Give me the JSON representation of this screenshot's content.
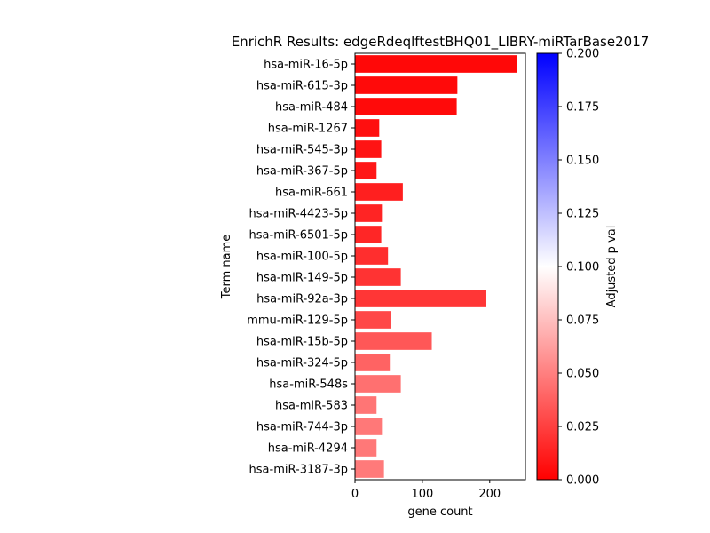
{
  "chart_data": {
    "type": "bar",
    "orientation": "horizontal",
    "title": "EnrichR Results: edgeRdeqlftestBHQ01_LIBRY-miRTarBase2017",
    "xlabel": "gene count",
    "ylabel": "Term name",
    "xlim": [
      0,
      253
    ],
    "xticks": [
      0,
      100,
      200
    ],
    "categories": [
      "hsa-miR-16-5p",
      "hsa-miR-615-3p",
      "hsa-miR-484",
      "hsa-miR-1267",
      "hsa-miR-545-3p",
      "hsa-miR-367-5p",
      "hsa-miR-661",
      "hsa-miR-4423-5p",
      "hsa-miR-6501-5p",
      "hsa-miR-100-5p",
      "hsa-miR-149-5p",
      "hsa-miR-92a-3p",
      "mmu-miR-129-5p",
      "hsa-miR-15b-5p",
      "hsa-miR-324-5p",
      "hsa-miR-548s",
      "hsa-miR-583",
      "hsa-miR-744-3p",
      "hsa-miR-4294",
      "hsa-miR-3187-3p"
    ],
    "values": [
      240,
      152,
      151,
      36,
      39,
      32,
      71,
      40,
      39,
      49,
      68,
      195,
      54,
      114,
      53,
      68,
      32,
      40,
      32,
      43
    ],
    "adjusted_p": [
      0.003,
      0.004,
      0.004,
      0.006,
      0.008,
      0.009,
      0.012,
      0.014,
      0.015,
      0.018,
      0.02,
      0.021,
      0.028,
      0.034,
      0.039,
      0.044,
      0.046,
      0.047,
      0.047,
      0.048
    ],
    "colorbar": {
      "label": "Adjusted p val",
      "min": 0.0,
      "max": 0.2,
      "ticks": [
        "0.000",
        "0.025",
        "0.050",
        "0.075",
        "0.100",
        "0.125",
        "0.150",
        "0.175",
        "0.200"
      ],
      "colormap": [
        "#ff0000",
        "#ffffff",
        "#0000ff"
      ]
    }
  }
}
